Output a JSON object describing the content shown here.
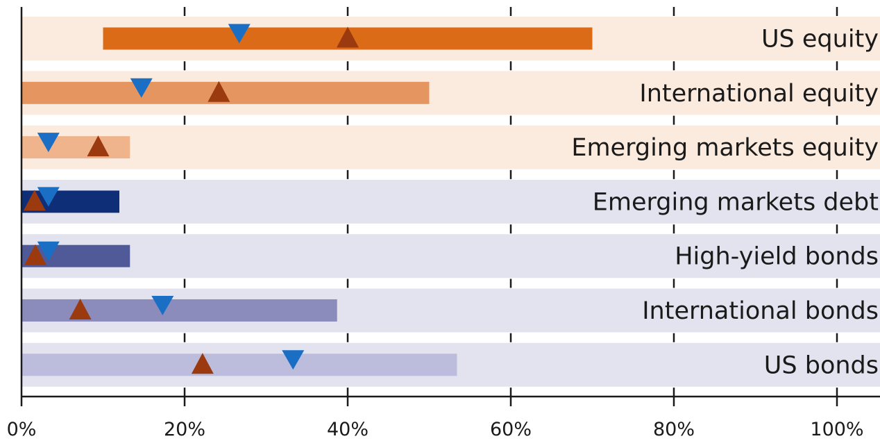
{
  "chart_data": {
    "type": "bar",
    "subtype": "range-bar-with-markers",
    "orientation": "horizontal",
    "title": "",
    "xlabel": "",
    "ylabel": "",
    "xlim": [
      0,
      105
    ],
    "x_ticks": [
      0,
      20,
      40,
      60,
      80,
      100
    ],
    "x_tick_labels": [
      "0%",
      "20%",
      "40%",
      "60%",
      "80%",
      "100%"
    ],
    "grid": "vertical dashed",
    "legend": "none",
    "categories": [
      "US equity",
      "International equity",
      "Emerging markets equity",
      "Emerging markets debt",
      "High-yield bonds",
      "International bonds",
      "US bonds"
    ],
    "ranges": [
      {
        "low": 10,
        "high": 70
      },
      {
        "low": 0,
        "high": 50
      },
      {
        "low": 0,
        "high": 13.3
      },
      {
        "low": 0,
        "high": 12
      },
      {
        "low": 0,
        "high": 13.3
      },
      {
        "low": 0,
        "high": 38.7
      },
      {
        "low": 0,
        "high": 53.4
      }
    ],
    "series": [
      {
        "marker": "down-triangle",
        "color": "#1a6fc4",
        "values": [
          26.7,
          14.7,
          3.3,
          3.3,
          3.3,
          17.3,
          33.3
        ]
      },
      {
        "marker": "up-triangle",
        "color": "#9c3a0f",
        "values": [
          40,
          24.2,
          9.4,
          1.6,
          1.7,
          7.2,
          22.2
        ]
      }
    ],
    "bar_colors": [
      "#dc6b18",
      "#e59660",
      "#efb48c",
      "#0e2f78",
      "#505a98",
      "#8c8cbc",
      "#bcbcdc"
    ],
    "band_colors": [
      "#fbebde",
      "#fbebde",
      "#fbebde",
      "#e3e3f0",
      "#e3e3f0",
      "#e3e3f0",
      "#e3e3f0"
    ]
  }
}
